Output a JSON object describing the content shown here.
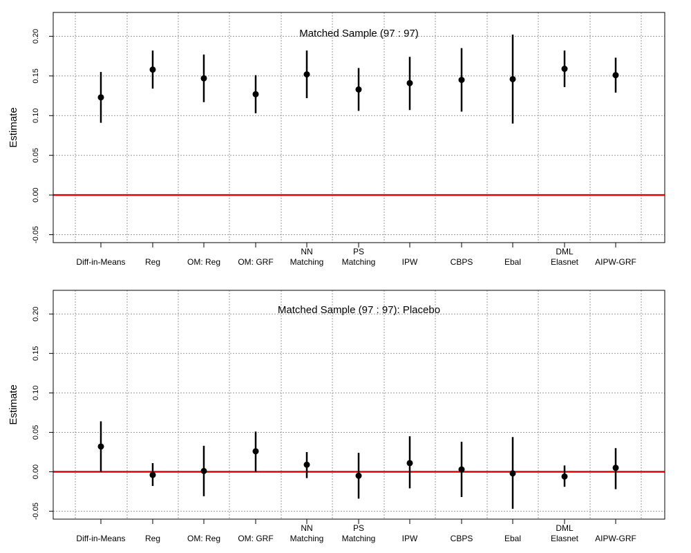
{
  "chart_data": [
    {
      "type": "scatter",
      "title": "Matched Sample (97 : 97)",
      "ylabel": "Estimate",
      "xlabel": "",
      "ylim": [
        -0.06,
        0.23
      ],
      "yticks": [
        -0.05,
        0.0,
        0.05,
        0.1,
        0.15,
        0.2
      ],
      "ytick_labels": [
        "-0.05",
        "0.00",
        "0.05",
        "0.10",
        "0.15",
        "0.20"
      ],
      "grid": true,
      "reference_line": {
        "y": 0,
        "color": "#e00000"
      },
      "categories": [
        [
          "Diff-in-Means"
        ],
        [
          "Reg"
        ],
        [
          "OM: Reg"
        ],
        [
          "OM: GRF"
        ],
        [
          "NN",
          "Matching"
        ],
        [
          "PS",
          "Matching"
        ],
        [
          "IPW"
        ],
        [
          "CBPS"
        ],
        [
          "Ebal"
        ],
        [
          "DML",
          "Elasnet"
        ],
        [
          "AIPW-GRF"
        ]
      ],
      "estimates": [
        0.123,
        0.158,
        0.147,
        0.127,
        0.152,
        0.133,
        0.141,
        0.145,
        0.146,
        0.159,
        0.151
      ],
      "ci_low": [
        0.091,
        0.134,
        0.117,
        0.103,
        0.122,
        0.106,
        0.107,
        0.105,
        0.09,
        0.136,
        0.129
      ],
      "ci_high": [
        0.155,
        0.182,
        0.177,
        0.151,
        0.182,
        0.16,
        0.174,
        0.185,
        0.202,
        0.182,
        0.173
      ]
    },
    {
      "type": "scatter",
      "title": "Matched Sample  (97 : 97): Placebo",
      "ylabel": "Estimate",
      "xlabel": "",
      "ylim": [
        -0.06,
        0.23
      ],
      "yticks": [
        -0.05,
        0.0,
        0.05,
        0.1,
        0.15,
        0.2
      ],
      "ytick_labels": [
        "-0.05",
        "0.00",
        "0.05",
        "0.10",
        "0.15",
        "0.20"
      ],
      "grid": true,
      "reference_line": {
        "y": 0,
        "color": "#e00000"
      },
      "categories": [
        [
          "Diff-in-Means"
        ],
        [
          "Reg"
        ],
        [
          "OM: Reg"
        ],
        [
          "OM: GRF"
        ],
        [
          "NN",
          "Matching"
        ],
        [
          "PS",
          "Matching"
        ],
        [
          "IPW"
        ],
        [
          "CBPS"
        ],
        [
          "Ebal"
        ],
        [
          "DML",
          "Elasnet"
        ],
        [
          "AIPW-GRF"
        ]
      ],
      "estimates": [
        0.032,
        -0.004,
        0.001,
        0.026,
        0.009,
        -0.005,
        0.011,
        0.003,
        -0.002,
        -0.006,
        0.005
      ],
      "ci_low": [
        0.0,
        -0.018,
        -0.031,
        0.0,
        -0.008,
        -0.034,
        -0.021,
        -0.032,
        -0.047,
        -0.019,
        -0.022
      ],
      "ci_high": [
        0.064,
        0.011,
        0.033,
        0.051,
        0.025,
        0.024,
        0.045,
        0.038,
        0.044,
        0.008,
        0.03
      ]
    }
  ]
}
